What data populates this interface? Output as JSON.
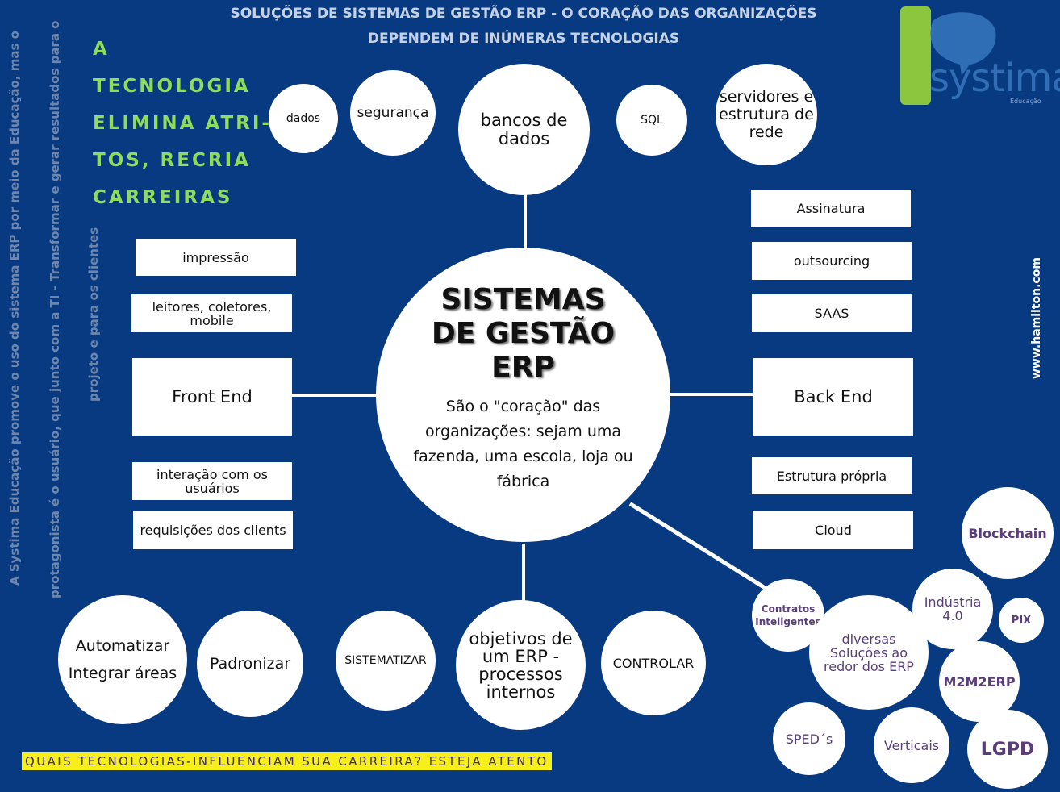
{
  "title": {
    "line1": "SOLUÇÕES DE SISTEMAS DE GESTÃO ERP - O CORAÇÃO DAS ORGANIZAÇÕES",
    "line2": "DEPENDEM DE INÚMERAS TECNOLOGIAS"
  },
  "tagline": {
    "lines": [
      "A",
      "TECNOLOGIA",
      "ELIMINA ATRI-",
      "TOS, RECRIA",
      "CARREIRAS"
    ]
  },
  "side_text": {
    "line1": "A Systima Educação promove o uso do sistema ERP por meio da Educação, mas o",
    "line2": "protagonista é o usuário, que junto com a TI - Transformar e gerar resultados para o",
    "line3": "projeto e para os clientes",
    "right": "www.hamilton.com"
  },
  "logo": {
    "text": "systima",
    "subtext": "Educação"
  },
  "center": {
    "title_lines": [
      "SISTEMAS",
      "DE GESTÃO",
      "ERP"
    ],
    "description": "São o \"coração\"  das organizações: sejam uma fazenda, uma escola, loja ou fábrica"
  },
  "top_circles": {
    "dados": "dados",
    "seguranca": "segurança",
    "bancos": "bancos de dados",
    "sql": "SQL",
    "servidores": "servidores e estrutura de rede"
  },
  "front_end": {
    "main": "Front End",
    "items": [
      "impressão",
      "leitores, coletores, mobile",
      "interação com os usuários",
      "requisições dos clients"
    ]
  },
  "back_end": {
    "main": "Back End",
    "items": [
      "Assinatura",
      "outsourcing",
      "SAAS",
      "Estrutura própria",
      "Cloud"
    ]
  },
  "objectives": {
    "center": "objetivos de um ERP - processos internos",
    "automatizar": "Automatizar",
    "integrar": "Integrar áreas",
    "padronizar": "Padronizar",
    "sistematizar": "SISTEMATIZAR",
    "controlar": "CONTROLAR"
  },
  "solutions": {
    "center": "diversas Soluções ao redor dos ERP",
    "contratos": "Contratos Inteligentes",
    "blockchain": "Blockchain",
    "industria": "Indústria 4.0",
    "pix": "PIX",
    "m2m": "M2M2ERP",
    "sped": "SPED´s",
    "verticais": "Verticais",
    "lgpd": "LGPD"
  },
  "footer": "QUAIS TECNOLOGIAS-INFLUENCIAM SUA CARREIRA? ESTEJA ATENTO",
  "colors": {
    "background": "#073a80",
    "tagline": "#8fdc5a",
    "footer_bg": "#f6ef1a",
    "logo_green": "#8cc63f",
    "logo_blue": "#2f6db5",
    "solution_text": "#5a3d7a"
  }
}
